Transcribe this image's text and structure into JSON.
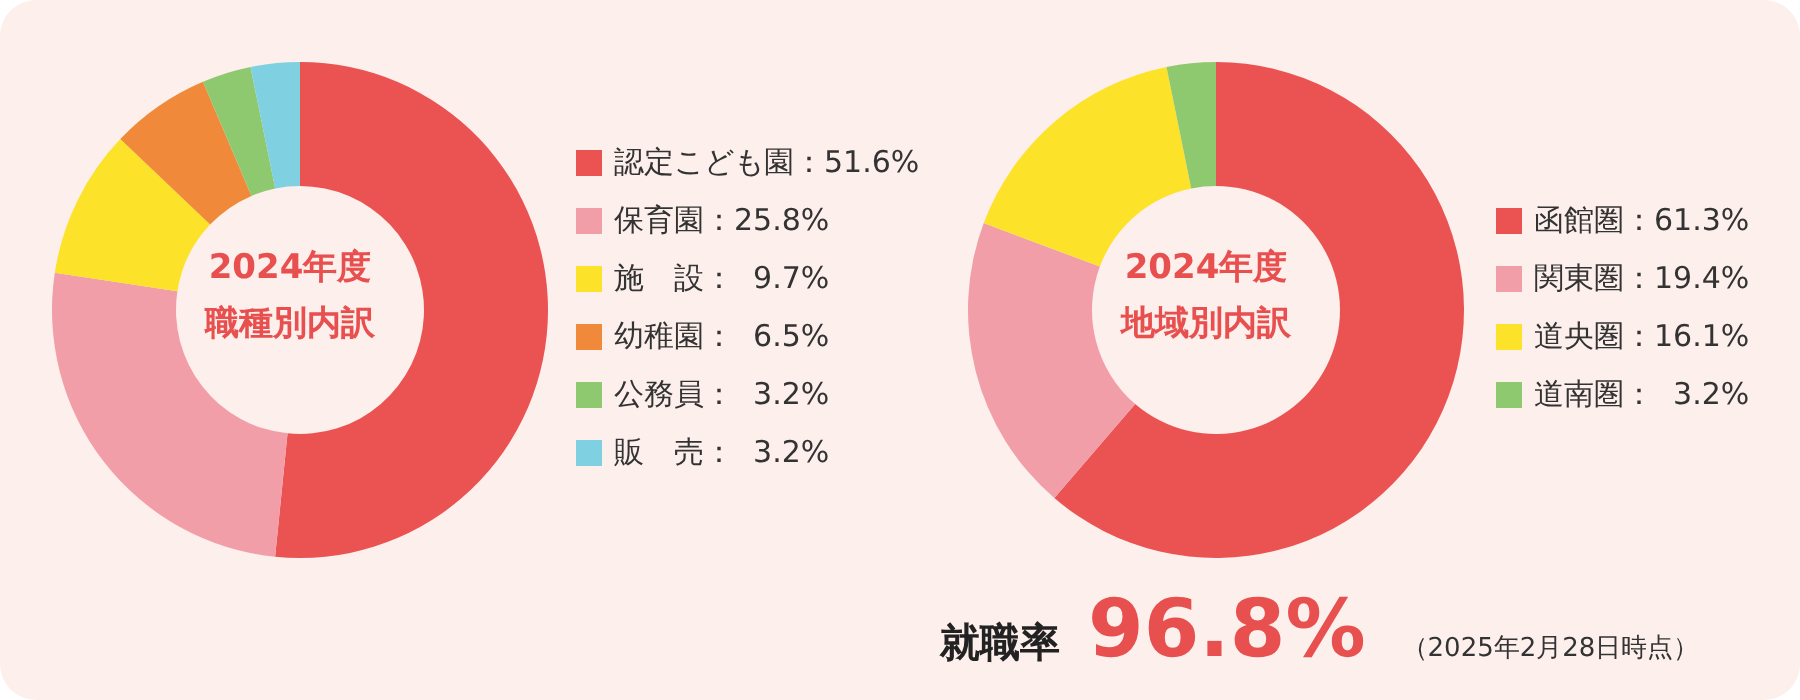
{
  "chart_data": [
    {
      "type": "donut",
      "title": "2024年度",
      "subtitle": "職種別内訳",
      "categories": [
        "認定こども園",
        "保育園",
        "施　設",
        "幼稚園",
        "公務員",
        "販　売"
      ],
      "values": [
        51.6,
        25.8,
        9.7,
        6.5,
        3.2,
        3.2
      ],
      "value_labels": [
        "：51.6%",
        "：25.8%",
        "：  9.7%",
        "：  6.5%",
        "：  3.2%",
        "：  3.2%"
      ],
      "colors": [
        "#eb5353",
        "#f19ea8",
        "#fde22a",
        "#f08a3a",
        "#8fc96f",
        "#7fd0e0"
      ],
      "legend": "right"
    },
    {
      "type": "donut",
      "title": "2024年度",
      "subtitle": "地域別内訳",
      "categories": [
        "函館圏",
        "関東圏",
        "道央圏",
        "道南圏"
      ],
      "values": [
        61.3,
        19.4,
        16.1,
        3.2
      ],
      "value_labels": [
        "：61.3%",
        "：19.4%",
        "：16.1%",
        "：  3.2%"
      ],
      "colors": [
        "#eb5353",
        "#f19ea8",
        "#fde22a",
        "#8fc96f"
      ],
      "legend": "right",
      "annotations": [
        "就職率",
        "96.8%",
        "（2025年2月28日時点）"
      ]
    }
  ]
}
